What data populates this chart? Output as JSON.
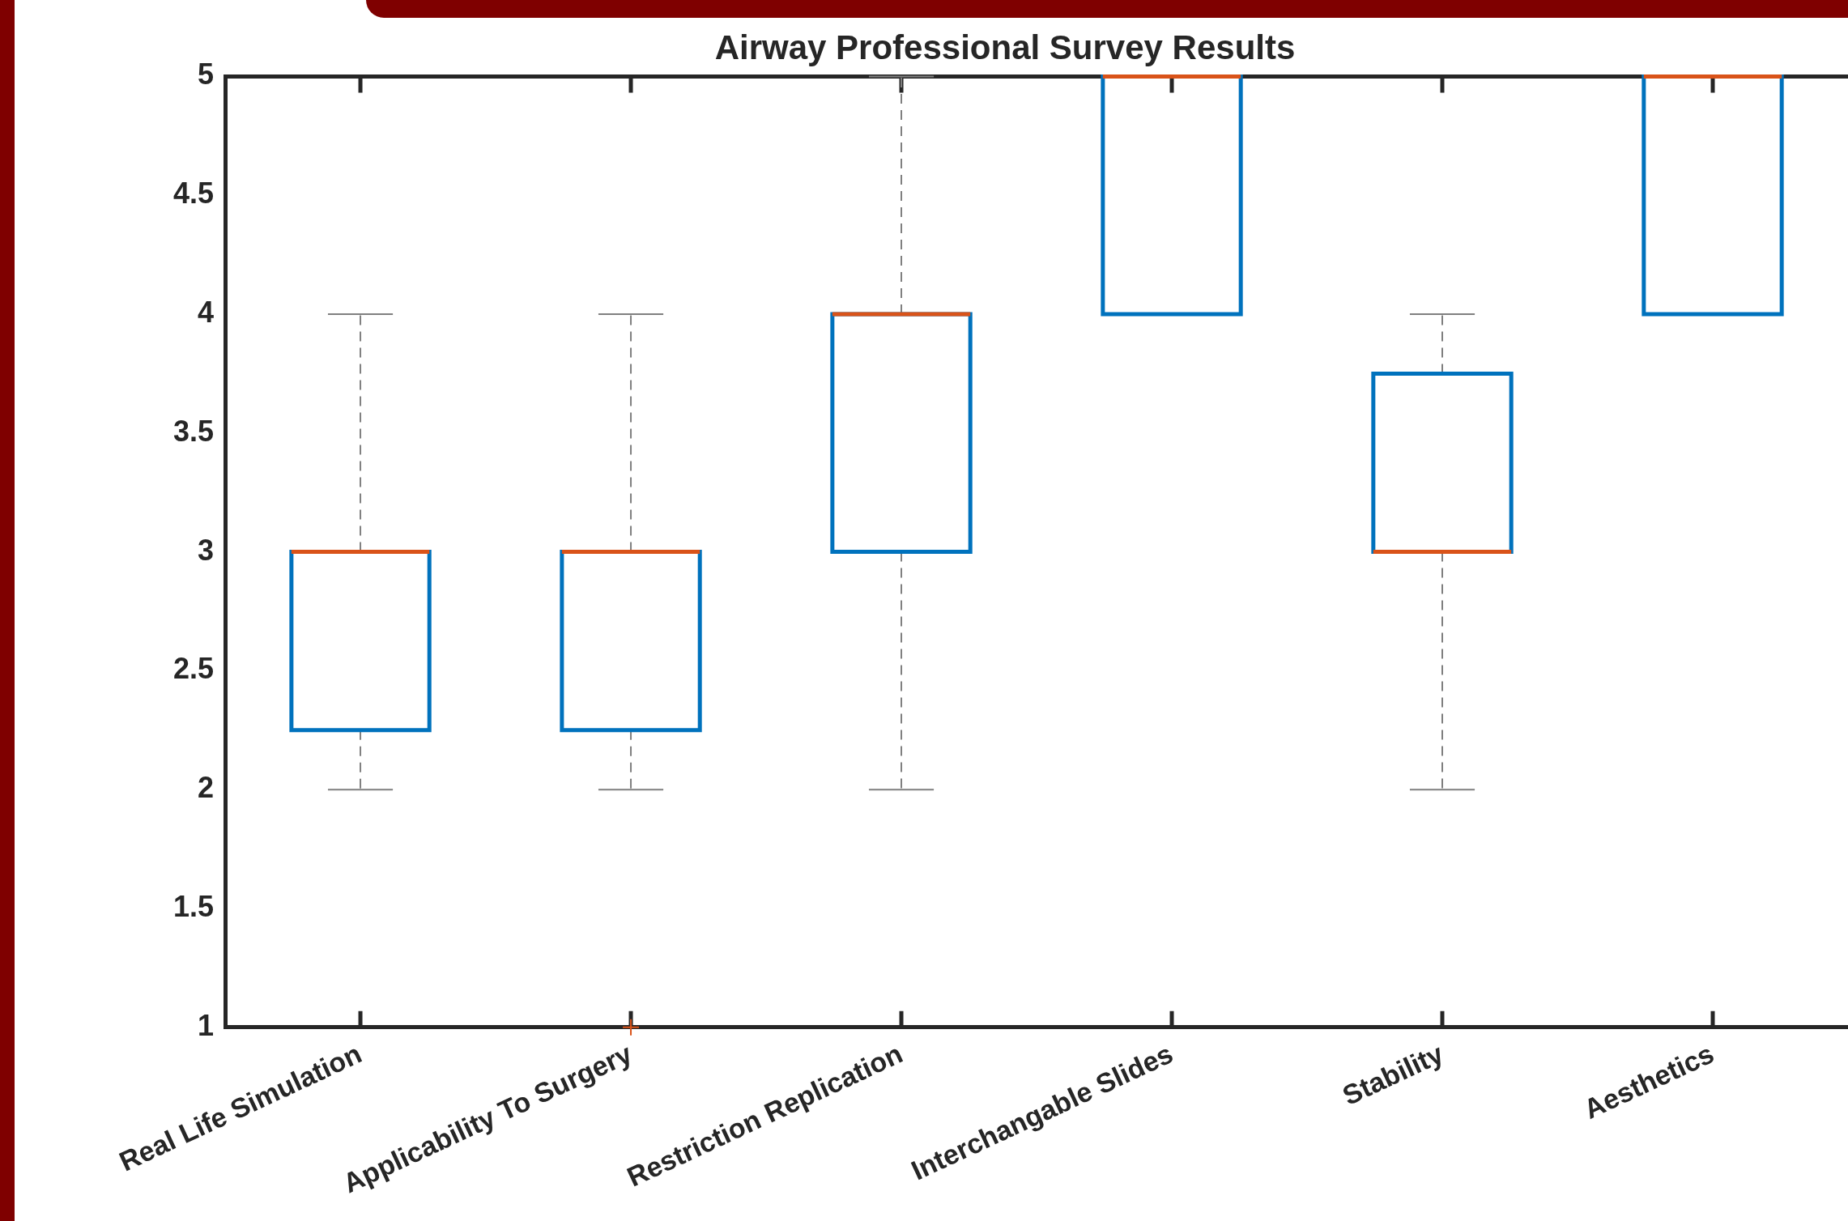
{
  "chart_data": {
    "type": "box",
    "title": "Airway Professional Survey Results",
    "categories": [
      "Real Life Simulation",
      "Applicability To Surgery",
      "Restriction Replication",
      "Interchangable Slides",
      "Stability",
      "Aesthetics"
    ],
    "ylim": [
      1,
      5
    ],
    "yticks": [
      1,
      1.5,
      2,
      2.5,
      3,
      3.5,
      4,
      4.5,
      5
    ],
    "grid": false,
    "legend": false,
    "series": [
      {
        "color": "#0072bd",
        "boxes": [
          {
            "low": 2,
            "q1": 2.25,
            "median": 3,
            "q3": 3,
            "high": 4
          },
          {
            "low": 2,
            "q1": 2.25,
            "median": 3,
            "q3": 3,
            "high": 4,
            "outliers": [
              1
            ]
          },
          {
            "low": 2,
            "q1": 3,
            "median": 4,
            "q3": 4,
            "high": 5
          },
          {
            "low": 4,
            "q1": 4,
            "median": 5,
            "q3": 5,
            "high": 5
          },
          {
            "low": 2,
            "q1": 3,
            "median": 3,
            "q3": 3.75,
            "high": 4
          },
          {
            "low": 4,
            "q1": 4,
            "median": 5,
            "q3": 5,
            "high": 5
          }
        ]
      }
    ]
  }
}
